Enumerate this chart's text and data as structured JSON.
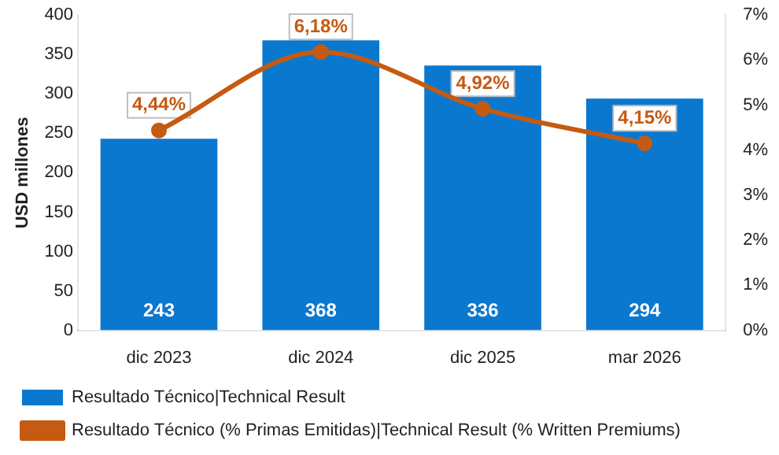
{
  "chart_data": {
    "type": "bar",
    "ylabel": "USD millones",
    "categories": [
      "dic 2023",
      "dic 2024",
      "dic 2025",
      "mar 2026"
    ],
    "series": [
      {
        "name": "Resultado Técnico|Technical Result",
        "color": "#0b78d0",
        "values": [
          243,
          368,
          336,
          294
        ],
        "value_labels": [
          "243",
          "368",
          "336",
          "294"
        ]
      },
      {
        "name": "Resultado Técnico (% Primas Emitidas)|Technical Result (% Written Premiums)",
        "type": "line",
        "axis": "y2",
        "color": "#c55a11",
        "values": [
          4.44,
          6.18,
          4.92,
          4.15
        ],
        "value_labels": [
          "4,44%",
          "6,18%",
          "4,92%",
          "4,15%"
        ]
      }
    ],
    "ylim": [
      0,
      400
    ],
    "yticks": [
      0,
      50,
      100,
      150,
      200,
      250,
      300,
      350,
      400
    ],
    "y2lim": [
      0,
      7
    ],
    "y2ticks": [
      {
        "value": 0,
        "label": "0%"
      },
      {
        "value": 1,
        "label": "1%"
      },
      {
        "value": 2,
        "label": "2%"
      },
      {
        "value": 3,
        "label": "3%"
      },
      {
        "value": 4,
        "label": "4%"
      },
      {
        "value": 5,
        "label": "5%"
      },
      {
        "value": 6,
        "label": "6%"
      },
      {
        "value": 7,
        "label": "7%"
      }
    ],
    "marker": "circle",
    "legend": "bottom",
    "grid": false
  }
}
